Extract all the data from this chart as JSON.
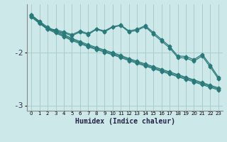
{
  "xlabel": "Humidex (Indice chaleur)",
  "background_color": "#cce8e8",
  "grid_color": "#aacccc",
  "line_color": "#2a7a7a",
  "x": [
    0,
    1,
    2,
    3,
    4,
    5,
    6,
    7,
    8,
    9,
    10,
    11,
    12,
    13,
    14,
    15,
    16,
    17,
    18,
    19,
    20,
    21,
    22,
    23
  ],
  "series": [
    [
      -1.3,
      -1.42,
      -1.53,
      -1.6,
      -1.67,
      -1.74,
      -1.8,
      -1.86,
      -1.91,
      -1.96,
      -2.01,
      -2.06,
      -2.12,
      -2.17,
      -2.22,
      -2.27,
      -2.32,
      -2.37,
      -2.42,
      -2.47,
      -2.52,
      -2.57,
      -2.62,
      -2.67
    ],
    [
      -1.32,
      -1.44,
      -1.55,
      -1.62,
      -1.69,
      -1.76,
      -1.82,
      -1.88,
      -1.93,
      -1.98,
      -2.03,
      -2.08,
      -2.14,
      -2.19,
      -2.24,
      -2.29,
      -2.34,
      -2.39,
      -2.44,
      -2.49,
      -2.54,
      -2.59,
      -2.64,
      -2.69
    ],
    [
      -1.34,
      -1.46,
      -1.57,
      -1.64,
      -1.71,
      -1.78,
      -1.84,
      -1.9,
      -1.95,
      -2.0,
      -2.05,
      -2.1,
      -2.16,
      -2.21,
      -2.26,
      -2.31,
      -2.36,
      -2.41,
      -2.46,
      -2.51,
      -2.56,
      -2.61,
      -2.66,
      -2.71
    ],
    [
      -1.3,
      -1.44,
      -1.56,
      -1.58,
      -1.62,
      -1.67,
      -1.6,
      -1.65,
      -1.56,
      -1.6,
      -1.52,
      -1.49,
      -1.6,
      -1.57,
      -1.5,
      -1.63,
      -1.76,
      -1.89,
      -2.07,
      -2.08,
      -2.14,
      -2.04,
      -2.24,
      -2.47
    ],
    [
      -1.3,
      -1.45,
      -1.57,
      -1.6,
      -1.64,
      -1.69,
      -1.62,
      -1.67,
      -1.57,
      -1.62,
      -1.53,
      -1.5,
      -1.62,
      -1.59,
      -1.52,
      -1.66,
      -1.79,
      -1.92,
      -2.1,
      -2.11,
      -2.17,
      -2.07,
      -2.28,
      -2.5
    ]
  ],
  "ylim": [
    -3.1,
    -1.1
  ],
  "yticks": [
    -3.0,
    -2.0
  ],
  "ytick_labels": [
    "-3",
    "-2"
  ],
  "xticks": [
    0,
    1,
    2,
    3,
    4,
    5,
    6,
    7,
    8,
    9,
    10,
    11,
    12,
    13,
    14,
    15,
    16,
    17,
    18,
    19,
    20,
    21,
    22,
    23
  ],
  "marker": "D",
  "markersize": 2.5,
  "linewidth": 0.9,
  "fontsize_xlabel": 7,
  "fontsize_ytick": 8,
  "fontsize_xtick": 5
}
